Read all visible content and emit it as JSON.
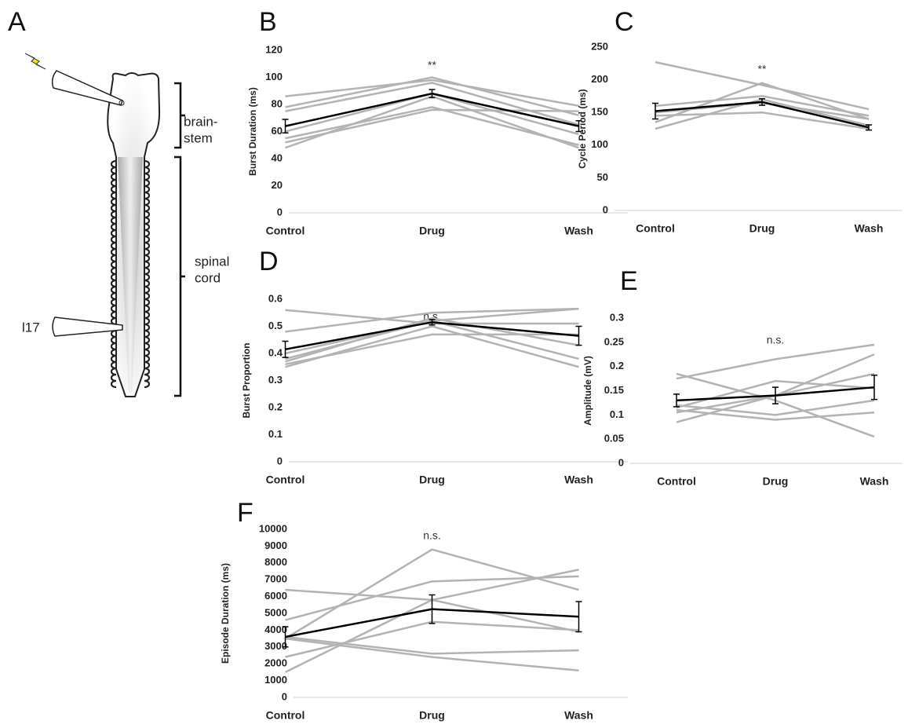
{
  "panel_a": {
    "label": "A",
    "labels": [
      "brain-",
      "stem",
      "spinal",
      "cord",
      "l17"
    ]
  },
  "chart_data": [
    {
      "type": "line",
      "panel": "B",
      "ylabel": "Burst Duration (ms)",
      "annotation": "**",
      "categories": [
        "Control",
        "Drug",
        "Wash"
      ],
      "ylim": [
        0,
        120
      ],
      "yticks": [
        0,
        20,
        40,
        60,
        80,
        100,
        120
      ],
      "series": [
        {
          "color": "#b3b3b3",
          "values": [
            86,
            98,
            79
          ]
        },
        {
          "color": "#b3b3b3",
          "values": [
            78,
            100,
            72
          ]
        },
        {
          "color": "#b3b3b3",
          "values": [
            75,
            96,
            65
          ]
        },
        {
          "color": "#b3b3b3",
          "values": [
            60,
            88,
            58
          ]
        },
        {
          "color": "#b3b3b3",
          "values": [
            55,
            78,
            50
          ]
        },
        {
          "color": "#b3b3b3",
          "values": [
            52,
            76,
            75
          ]
        },
        {
          "color": "#b3b3b3",
          "values": [
            48,
            86,
            48
          ]
        },
        {
          "color": "#000000",
          "values": [
            64,
            88,
            64
          ],
          "errors": [
            5,
            3,
            4
          ]
        }
      ]
    },
    {
      "type": "line",
      "panel": "C",
      "ylabel": "Cycle Period (ms)",
      "annotation": "**",
      "categories": [
        "Control",
        "Drug",
        "Wash"
      ],
      "ylim": [
        0,
        250
      ],
      "yticks": [
        0,
        50,
        100,
        150,
        200,
        250
      ],
      "series": [
        {
          "color": "#b3b3b3",
          "values": [
            227,
            192,
            155
          ]
        },
        {
          "color": "#b3b3b3",
          "values": [
            135,
            195,
            140
          ]
        },
        {
          "color": "#b3b3b3",
          "values": [
            160,
            175,
            145
          ]
        },
        {
          "color": "#b3b3b3",
          "values": [
            150,
            165,
            140
          ]
        },
        {
          "color": "#b3b3b3",
          "values": [
            125,
            170,
            130
          ]
        },
        {
          "color": "#b3b3b3",
          "values": [
            145,
            150,
            125
          ]
        },
        {
          "color": "#000000",
          "values": [
            152,
            166,
            127
          ],
          "errors": [
            12,
            5,
            4
          ]
        }
      ]
    },
    {
      "type": "line",
      "panel": "D",
      "ylabel": "Burst Proportion",
      "annotation": "n.s.",
      "categories": [
        "Control",
        "Drug",
        "Wash"
      ],
      "ylim": [
        0,
        0.6
      ],
      "yticks": [
        0,
        0.1,
        0.2,
        0.3,
        0.4,
        0.5,
        0.6
      ],
      "series": [
        {
          "color": "#b3b3b3",
          "values": [
            0.56,
            0.51,
            0.51
          ]
        },
        {
          "color": "#b3b3b3",
          "values": [
            0.48,
            0.55,
            0.565
          ]
        },
        {
          "color": "#b3b3b3",
          "values": [
            0.4,
            0.52,
            0.565
          ]
        },
        {
          "color": "#b3b3b3",
          "values": [
            0.37,
            0.53,
            0.43
          ]
        },
        {
          "color": "#b3b3b3",
          "values": [
            0.36,
            0.47,
            0.47
          ]
        },
        {
          "color": "#b3b3b3",
          "values": [
            0.35,
            0.5,
            0.35
          ]
        },
        {
          "color": "#b3b3b3",
          "values": [
            0.38,
            0.52,
            0.38
          ]
        },
        {
          "color": "#000000",
          "values": [
            0.415,
            0.515,
            0.465
          ],
          "errors": [
            0.03,
            0.01,
            0.035
          ]
        }
      ]
    },
    {
      "type": "line",
      "panel": "E",
      "ylabel": "Amplitude (mV)",
      "annotation": "n.s.",
      "categories": [
        "Control",
        "Drug",
        "Wash"
      ],
      "ylim": [
        0,
        0.3
      ],
      "yticks": [
        0,
        0.05,
        0.1,
        0.15,
        0.2,
        0.25,
        0.3
      ],
      "series": [
        {
          "color": "#b3b3b3",
          "values": [
            0.175,
            0.215,
            0.245
          ]
        },
        {
          "color": "#b3b3b3",
          "values": [
            0.185,
            0.13,
            0.055
          ]
        },
        {
          "color": "#b3b3b3",
          "values": [
            0.115,
            0.17,
            0.155
          ]
        },
        {
          "color": "#b3b3b3",
          "values": [
            0.085,
            0.14,
            0.225
          ]
        },
        {
          "color": "#b3b3b3",
          "values": [
            0.12,
            0.1,
            0.13
          ]
        },
        {
          "color": "#b3b3b3",
          "values": [
            0.11,
            0.09,
            0.105
          ]
        },
        {
          "color": "#b3b3b3",
          "values": [
            0.105,
            0.14,
            0.185
          ]
        },
        {
          "color": "#000000",
          "values": [
            0.13,
            0.14,
            0.157
          ],
          "errors": [
            0.013,
            0.017,
            0.025
          ]
        }
      ]
    },
    {
      "type": "line",
      "panel": "F",
      "ylabel": "Episode Duration (ms)",
      "annotation": "n.s.",
      "categories": [
        "Control",
        "Drug",
        "Wash"
      ],
      "ylim": [
        0,
        10000
      ],
      "yticks": [
        0,
        1000,
        2000,
        3000,
        4000,
        5000,
        6000,
        7000,
        8000,
        9000,
        10000
      ],
      "series": [
        {
          "color": "#b3b3b3",
          "values": [
            6400,
            5800,
            3900
          ]
        },
        {
          "color": "#b3b3b3",
          "values": [
            4600,
            6900,
            7200
          ]
        },
        {
          "color": "#b3b3b3",
          "values": [
            3500,
            8800,
            6400
          ]
        },
        {
          "color": "#b3b3b3",
          "values": [
            3600,
            2600,
            2800
          ]
        },
        {
          "color": "#b3b3b3",
          "values": [
            3500,
            2400,
            1600
          ]
        },
        {
          "color": "#b3b3b3",
          "values": [
            1500,
            5800,
            7600
          ]
        },
        {
          "color": "#b3b3b3",
          "values": [
            2400,
            4500,
            4000
          ]
        },
        {
          "color": "#000000",
          "values": [
            3600,
            5250,
            4800
          ],
          "errors": [
            600,
            850,
            900
          ]
        }
      ]
    }
  ]
}
